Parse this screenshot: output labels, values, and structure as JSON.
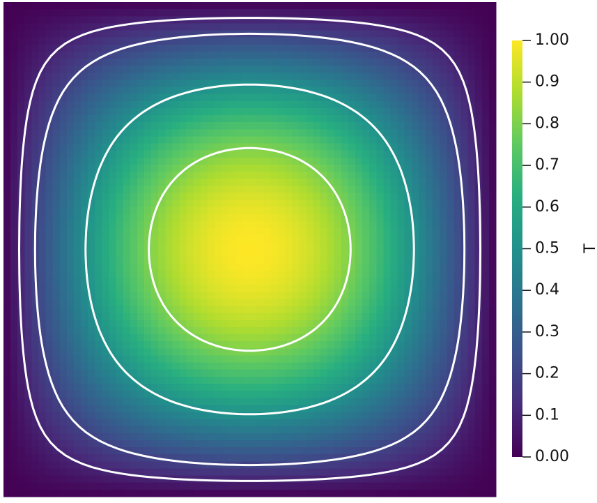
{
  "chart_data": {
    "type": "contour",
    "colorbar_label": "T",
    "contour_levels": [
      0.1,
      0.2,
      0.5,
      0.8
    ],
    "contour_color": "#ffffff",
    "clim": [
      0,
      1
    ],
    "cticks": [
      {
        "value": 0,
        "label": "0.00"
      },
      0.1,
      0.2,
      0.3,
      0.4,
      0.5,
      0.6,
      0.7,
      0.8,
      0.9,
      {
        "value": 1,
        "label": "1.00"
      }
    ]
  }
}
